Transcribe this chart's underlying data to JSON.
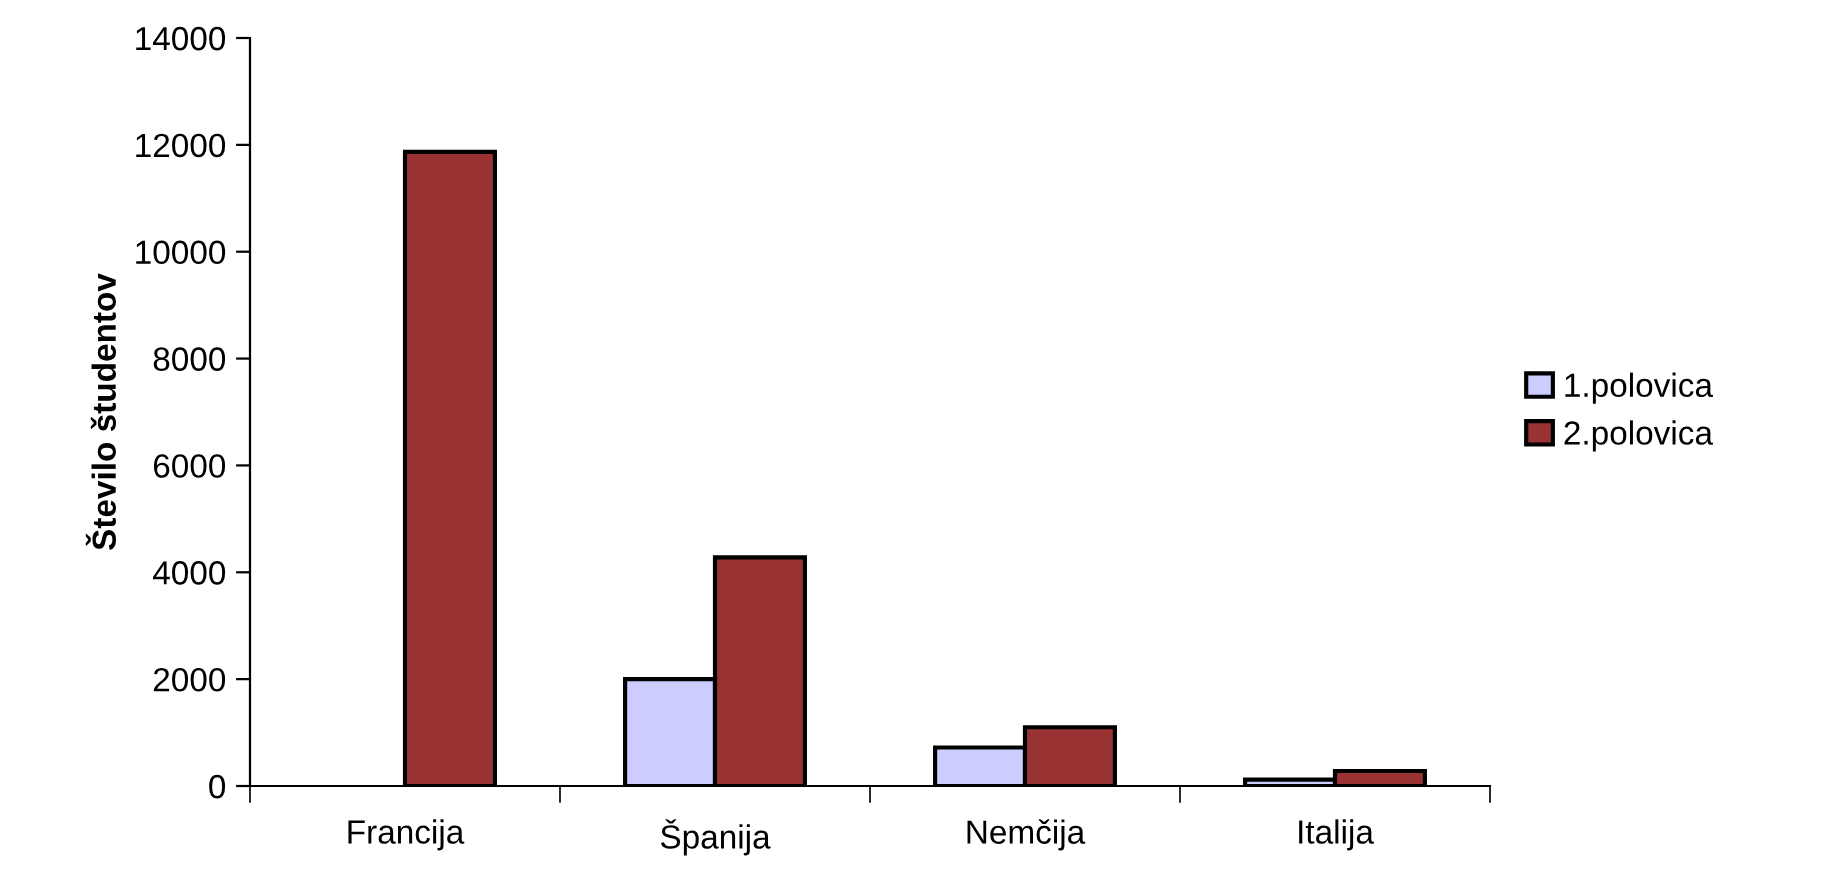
{
  "chart_data": {
    "type": "bar",
    "ylabel": "Število študentov",
    "categories": [
      "Francija",
      "Španija",
      "Nemčija",
      "Italija"
    ],
    "series": [
      {
        "name": "1.polovica",
        "color": "#ccccff",
        "values": [
          null,
          2000,
          720,
          120
        ]
      },
      {
        "name": "2.polovica",
        "color": "#993333",
        "values": [
          11870,
          4280,
          1100,
          280
        ]
      }
    ],
    "ylim": [
      0,
      14000
    ],
    "yticks": [
      0,
      2000,
      4000,
      6000,
      8000,
      10000,
      12000,
      14000
    ],
    "grid": false,
    "legend": "right"
  }
}
